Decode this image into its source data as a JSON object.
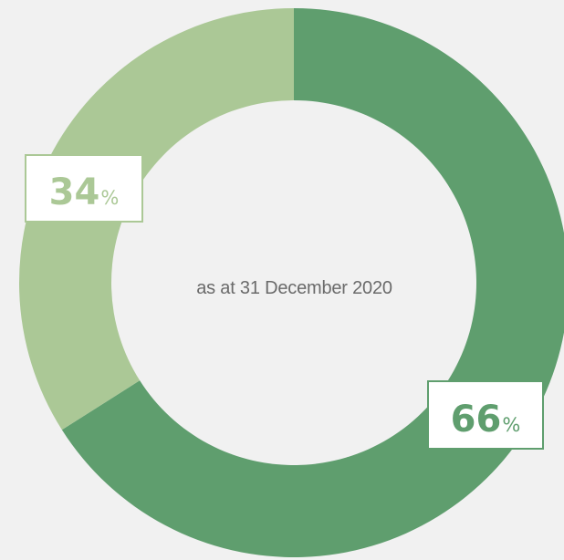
{
  "chart_data": {
    "type": "pie",
    "caption": "as at 31 December 2020",
    "slices": [
      {
        "value": 66,
        "label": "66",
        "unit": "%",
        "color": "#5f9e6e"
      },
      {
        "value": 34,
        "label": "34",
        "unit": "%",
        "color": "#abc896"
      }
    ],
    "start_angle_deg": 0,
    "direction": "clockwise"
  },
  "colors": {
    "background": "#f1f1f1",
    "label_box": "#ffffff",
    "caption_text": "#6a6a6a"
  }
}
